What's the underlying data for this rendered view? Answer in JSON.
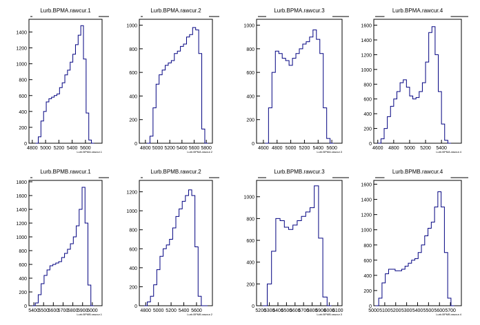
{
  "chart_data": [
    {
      "type": "histogram",
      "title": "Lurb.BPMA.rawcur.1",
      "xlabel": "Lurb.BPMA.rawcur.1",
      "xlim": [
        4750,
        5850
      ],
      "ylim": [
        0,
        1560
      ],
      "xticks": [
        4800,
        5000,
        5200,
        5400,
        5600
      ],
      "yticks": [
        0,
        200,
        400,
        600,
        800,
        1000,
        1200,
        1400
      ],
      "x": [
        4870,
        4910,
        4950,
        4990,
        5030,
        5070,
        5110,
        5150,
        5190,
        5230,
        5270,
        5310,
        5350,
        5390,
        5430,
        5470,
        5510,
        5550,
        5590,
        5630,
        5670,
        5710
      ],
      "values": [
        0,
        80,
        280,
        400,
        520,
        560,
        580,
        600,
        620,
        700,
        760,
        860,
        920,
        1020,
        1120,
        1240,
        1360,
        1480,
        1060,
        380,
        40,
        0
      ]
    },
    {
      "type": "histogram",
      "title": "Lurb.BPMA.rawcur.2",
      "xlabel": "Lurb.BPMA.rawcur.2",
      "xlim": [
        4700,
        5900
      ],
      "ylim": [
        0,
        1050
      ],
      "xticks": [
        4800,
        5000,
        5200,
        5400,
        5600,
        5800
      ],
      "yticks": [
        0,
        200,
        400,
        600,
        800,
        1000
      ],
      "x": [
        4850,
        4900,
        4950,
        5000,
        5050,
        5100,
        5150,
        5200,
        5250,
        5300,
        5350,
        5400,
        5450,
        5500,
        5550,
        5600,
        5650,
        5700,
        5750,
        5800
      ],
      "values": [
        0,
        60,
        300,
        500,
        580,
        620,
        660,
        680,
        700,
        760,
        780,
        820,
        840,
        900,
        920,
        980,
        960,
        760,
        120,
        0
      ]
    },
    {
      "type": "histogram",
      "title": "Lurb.BPMA.rawcur.3",
      "xlabel": "Lurb.BPMA.rawcur.3",
      "xlim": [
        4500,
        5750
      ],
      "ylim": [
        0,
        1050
      ],
      "xticks": [
        4600,
        4800,
        5000,
        5200,
        5400,
        5600
      ],
      "yticks": [
        0,
        200,
        400,
        600,
        800,
        1000
      ],
      "x": [
        4650,
        4700,
        4750,
        4800,
        4850,
        4900,
        4950,
        5000,
        5050,
        5100,
        5150,
        5200,
        5250,
        5300,
        5350,
        5400,
        5450,
        5500,
        5550,
        5600
      ],
      "values": [
        0,
        300,
        600,
        780,
        760,
        720,
        700,
        660,
        720,
        760,
        800,
        840,
        860,
        900,
        960,
        880,
        760,
        300,
        40,
        0
      ]
    },
    {
      "type": "histogram",
      "title": "Lurb.BPMA.rawcur.4",
      "xlabel": "Lurb.BPMA.rawcur.4",
      "xlim": [
        4550,
        5650
      ],
      "ylim": [
        0,
        1680
      ],
      "xticks": [
        4600,
        4800,
        5000,
        5200,
        5400
      ],
      "yticks": [
        0,
        200,
        400,
        600,
        800,
        1000,
        1200,
        1400,
        1600
      ],
      "x": [
        4620,
        4660,
        4700,
        4740,
        4780,
        4820,
        4860,
        4900,
        4940,
        4980,
        5020,
        5060,
        5100,
        5140,
        5180,
        5220,
        5260,
        5300,
        5340,
        5380,
        5420,
        5460,
        5500
      ],
      "values": [
        0,
        60,
        200,
        360,
        500,
        600,
        700,
        820,
        860,
        760,
        640,
        600,
        620,
        700,
        820,
        1100,
        1500,
        1580,
        1200,
        700,
        260,
        40,
        0
      ]
    },
    {
      "type": "histogram",
      "title": "Lurb.BPMB.rawcur.1",
      "xlabel": "Lurb.BPMB.rawcur.1",
      "xlim": [
        5350,
        6100
      ],
      "ylim": [
        0,
        1820
      ],
      "xticks": [
        5400,
        5500,
        5600,
        5700,
        5800,
        5900,
        6000
      ],
      "yticks": [
        0,
        200,
        400,
        600,
        800,
        1000,
        1200,
        1400,
        1600,
        1800
      ],
      "x": [
        5400,
        5430,
        5460,
        5490,
        5520,
        5550,
        5580,
        5610,
        5640,
        5670,
        5700,
        5730,
        5760,
        5790,
        5820,
        5850,
        5880,
        5910,
        5940,
        5970,
        6000
      ],
      "values": [
        0,
        40,
        160,
        320,
        440,
        520,
        580,
        600,
        620,
        640,
        700,
        760,
        820,
        900,
        1000,
        1160,
        1400,
        1720,
        1200,
        300,
        0
      ]
    },
    {
      "type": "histogram",
      "title": "Lurb.BPMB.rawcur.2",
      "xlabel": "Lurb.BPMB.rawcur.2",
      "xlim": [
        4700,
        5850
      ],
      "ylim": [
        0,
        1320
      ],
      "xticks": [
        4800,
        5000,
        5200,
        5400,
        5600
      ],
      "yticks": [
        0,
        200,
        400,
        600,
        800,
        1000,
        1200
      ],
      "x": [
        4800,
        4850,
        4900,
        4950,
        5000,
        5050,
        5100,
        5150,
        5200,
        5250,
        5300,
        5350,
        5400,
        5450,
        5500,
        5550,
        5600,
        5650,
        5700,
        5750
      ],
      "values": [
        0,
        40,
        100,
        220,
        380,
        520,
        600,
        640,
        700,
        820,
        940,
        1020,
        1100,
        1160,
        1220,
        1160,
        620,
        100,
        0,
        0
      ]
    },
    {
      "type": "histogram",
      "title": "Lurb.BPMB.rawcur.3",
      "xlabel": "Lurb.BPMB.rawcur.3",
      "xlim": [
        5150,
        6150
      ],
      "ylim": [
        0,
        1150
      ],
      "xticks": [
        5200,
        5300,
        5400,
        5500,
        5600,
        5700,
        5800,
        5900,
        6000,
        6100
      ],
      "yticks": [
        0,
        200,
        400,
        600,
        800,
        1000
      ],
      "x": [
        5250,
        5300,
        5350,
        5400,
        5450,
        5500,
        5550,
        5600,
        5650,
        5700,
        5750,
        5800,
        5850,
        5900,
        5950,
        6000
      ],
      "values": [
        0,
        200,
        500,
        800,
        780,
        720,
        700,
        740,
        780,
        820,
        860,
        900,
        1100,
        620,
        80,
        0
      ]
    },
    {
      "type": "histogram",
      "title": "Lurb.BPMB.rawcur.4",
      "xlabel": "Lurb.BPMB.rawcur.4",
      "xlim": [
        5000,
        5800
      ],
      "ylim": [
        0,
        1650
      ],
      "xticks": [
        5000,
        5100,
        5200,
        5300,
        5400,
        5500,
        5600,
        5700
      ],
      "yticks": [
        0,
        200,
        400,
        600,
        800,
        1000,
        1200,
        1400,
        1600
      ],
      "x": [
        5030,
        5060,
        5090,
        5120,
        5150,
        5180,
        5210,
        5240,
        5270,
        5300,
        5330,
        5360,
        5390,
        5420,
        5450,
        5480,
        5510,
        5540,
        5570,
        5600,
        5630,
        5660,
        5690,
        5720
      ],
      "values": [
        0,
        100,
        300,
        420,
        480,
        480,
        460,
        460,
        480,
        520,
        560,
        600,
        620,
        700,
        800,
        920,
        1020,
        1100,
        1300,
        1500,
        1300,
        700,
        100,
        0
      ]
    }
  ],
  "colors": {
    "line": "#000080",
    "axis": "#000000",
    "background": "#ffffff"
  }
}
